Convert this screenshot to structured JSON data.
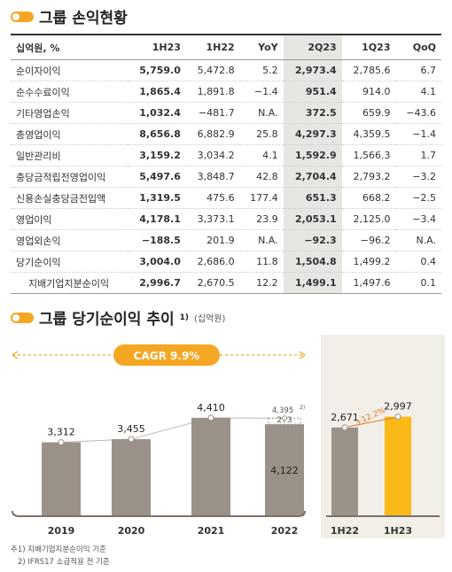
{
  "section1_title": "그룹 손익현황",
  "table": {
    "headers": [
      "십억원, %",
      "1H23",
      "1H22",
      "YoY",
      "2Q23",
      "1Q23",
      "QoQ"
    ],
    "rows": [
      {
        "label": "순이자이익",
        "values": [
          "5,759.0",
          "5,472.8",
          "5.2",
          "2,973.4",
          "2,785.6",
          "6.7"
        ]
      },
      {
        "label": "순수수료이익",
        "values": [
          "1,865.4",
          "1,891.8",
          "-1.4",
          "951.4",
          "914.0",
          "4.1"
        ]
      },
      {
        "label": "기타영업손익",
        "values": [
          "1,032.4",
          "-481.7",
          "N.A.",
          "372.5",
          "659.9",
          "-43.6"
        ]
      },
      {
        "label": "총영업이익",
        "values": [
          "8,656.8",
          "6,882.9",
          "25.8",
          "4,297.3",
          "4,359.5",
          "-1.4"
        ]
      },
      {
        "label": "일반관리비",
        "values": [
          "3,159.2",
          "3,034.2",
          "4.1",
          "1,592.9",
          "1,566.3",
          "1.7"
        ]
      },
      {
        "label": "충당금적립전영업이익",
        "values": [
          "5,497.6",
          "3,848.7",
          "42.8",
          "2,704.4",
          "2,793.2",
          "-3.2"
        ]
      },
      {
        "label": "신용손실충당금전입액",
        "values": [
          "1,319.5",
          "475.6",
          "177.4",
          "651.3",
          "668.2",
          "-2.5"
        ]
      },
      {
        "label": "영업이익",
        "values": [
          "4,178.1",
          "3,373.1",
          "23.9",
          "2,053.1",
          "2,125.0",
          "-3.4"
        ]
      },
      {
        "label": "영업외손익",
        "values": [
          "-188.5",
          "201.9",
          "N.A.",
          "-92.3",
          "-96.2",
          "N.A."
        ]
      },
      {
        "label": "당기순이익",
        "values": [
          "3,004.0",
          "2,686.0",
          "11.8",
          "1,504.8",
          "1,499.2",
          "0.4"
        ]
      },
      {
        "label": "지배기업지분순이익",
        "values": [
          "2,996.7",
          "2,670.5",
          "12.2",
          "1,499.1",
          "1,497.6",
          "0.1"
        ]
      }
    ]
  },
  "section2_title": "그룹 당기순이익 추이",
  "section2_sup": "1)",
  "section2_unit": "(십억원)",
  "chart_data": [
    {
      "type": "bar",
      "categories": [
        "2019",
        "2020",
        "2021",
        "2022"
      ],
      "values": [
        3312,
        3455,
        4410,
        4122
      ],
      "value_labels": [
        "3,312",
        "3,455",
        "4,410",
        "4,122"
      ],
      "stack_addition": {
        "category": "2022",
        "value": 273,
        "label": "273",
        "total": 4395,
        "total_label": "4,395",
        "total_sup": "2)"
      },
      "cagr_label": "CAGR 9.9%",
      "colors": {
        "bar": "#9a9189",
        "accent": "#f5a623"
      }
    },
    {
      "type": "bar",
      "categories": [
        "1H22",
        "1H23"
      ],
      "values": [
        2671,
        2997
      ],
      "value_labels": [
        "2,671",
        "2,997"
      ],
      "growth_label": "+12.2%",
      "colors": {
        "bars": [
          "#9a9189",
          "#fbb917"
        ],
        "growth": "#e8742a",
        "panel": "#f2efe9"
      }
    }
  ],
  "notes": [
    "주1) 지배기업지분순이익 기준",
    "2) IFRS17 소급적용 전 기준"
  ]
}
